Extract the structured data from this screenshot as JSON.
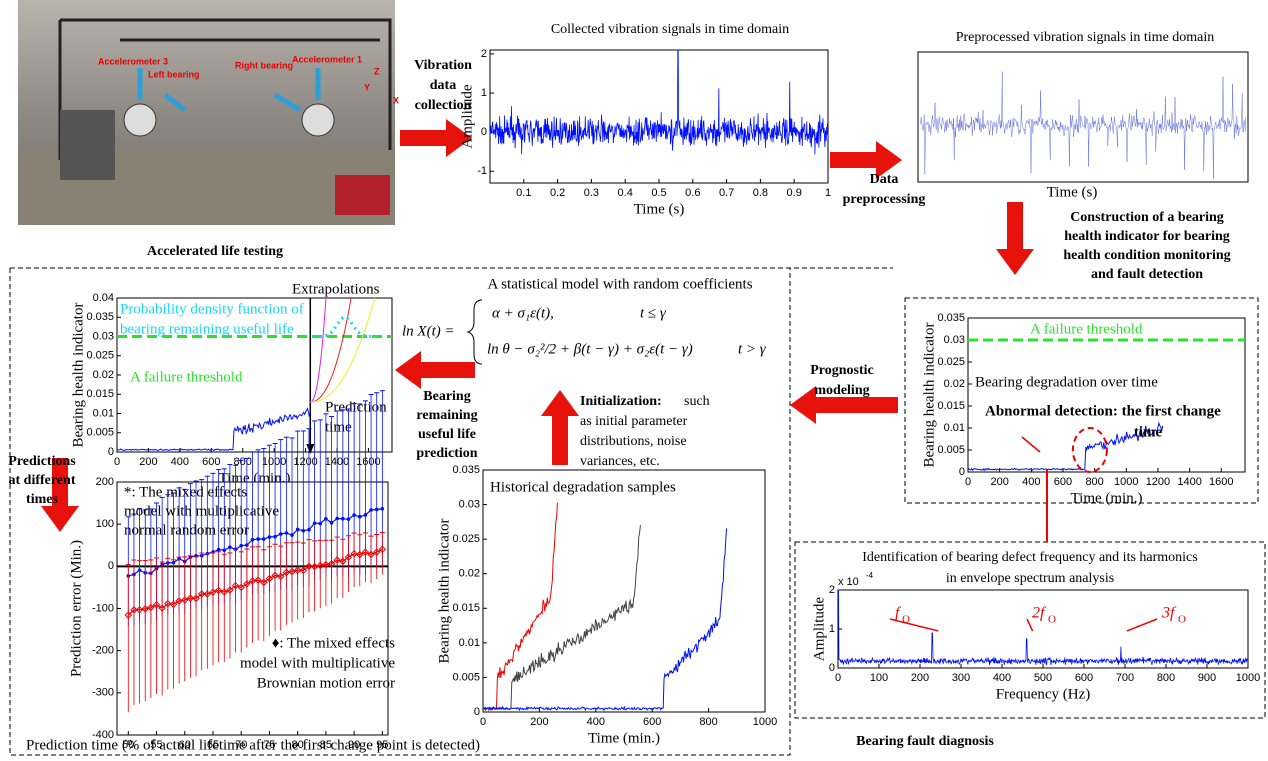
{
  "photo": {
    "labels": [
      "Accelerometer 3",
      "Left bearing",
      "Right bearing",
      "Accelerometer 1",
      "Z",
      "Y",
      "X"
    ],
    "caption": "Accelerated life testing"
  },
  "steps": {
    "collection": [
      "Vibration",
      "data",
      "collection"
    ],
    "preprocessing": [
      "Data",
      "preprocessing"
    ],
    "construction": [
      "Construction of a bearing",
      "health indicator for bearing",
      "health condition monitoring",
      "and fault detection"
    ],
    "prognostic": [
      "Prognostic",
      "modeling"
    ],
    "rul": [
      "Bearing",
      "remaining",
      "useful life",
      "prediction"
    ],
    "predictions": [
      "Predictions",
      "at different",
      "times"
    ],
    "initialization": {
      "bold": "Initialization:",
      "lines": [
        "such",
        "as initial parameter",
        "distributions, noise",
        "variances, etc."
      ]
    },
    "diagnosis": "Bearing fault diagnosis"
  },
  "charts": {
    "raw": {
      "title": "Collected vibration signals in time domain",
      "ylabel": "Amplitude",
      "xlabel": "Time (s)",
      "xlim": [
        0,
        1
      ],
      "xticks": [
        0.1,
        0.2,
        0.3,
        0.4,
        0.5,
        0.6,
        0.7,
        0.8,
        0.9,
        1
      ],
      "ylim": [
        -1.3,
        2.1
      ],
      "yticks": [
        -1,
        0,
        1,
        2
      ]
    },
    "preprocessed": {
      "title": "Preprocessed vibration signals in time domain",
      "xlabel": "Time (s)"
    },
    "health": {
      "ylabel": "Bearing health indicator",
      "xlabel": "Time (min.)",
      "xlim": [
        0,
        1750
      ],
      "xticks": [
        0,
        200,
        400,
        600,
        800,
        1000,
        1200,
        1400,
        1600
      ],
      "ylim": [
        0,
        0.035
      ],
      "yticks": [
        0,
        0.005,
        0.01,
        0.015,
        0.02,
        0.025,
        0.03,
        0.035
      ],
      "threshold": 0.03,
      "threshold_label": "A failure threshold",
      "notes": [
        "Bearing degradation over time",
        "Abnormal detection: the first change",
        "time"
      ]
    },
    "spectrum": {
      "title": [
        "Identification of bearing defect frequency and its harmonics",
        "in envelope spectrum analysis"
      ],
      "multiplier": "x 10",
      "exponent": "-4",
      "ylabel": "Amplitude",
      "xlabel": "Frequency (Hz)",
      "xlim": [
        0,
        1000
      ],
      "xticks": [
        0,
        100,
        200,
        300,
        400,
        500,
        600,
        700,
        800,
        900,
        1000
      ],
      "ylim": [
        0,
        2
      ],
      "yticks": [
        0,
        1,
        2
      ],
      "peak_labels": [
        "f",
        "2f",
        "3f"
      ],
      "peak_sub": "O"
    },
    "rul": {
      "ylabel": "Bearing health indicator",
      "xlabel": "Time (min.)",
      "xlim": [
        0,
        1750
      ],
      "xticks": [
        0,
        200,
        400,
        600,
        800,
        1000,
        1200,
        1400,
        1600
      ],
      "ylim": [
        0,
        0.04
      ],
      "yticks": [
        0,
        0.005,
        0.01,
        0.015,
        0.02,
        0.025,
        0.03,
        0.035,
        0.04
      ],
      "threshold": 0.03,
      "threshold_label": "A failure threshold",
      "extrapolations": "Extrapolations",
      "pdf_label": [
        "Probability density function of",
        "bearing remaining useful life"
      ],
      "prediction_time": [
        "Prediction",
        "time"
      ],
      "prediction_at": 1230
    },
    "model": {
      "title": "A statistical model with random coefficients",
      "lhs": "ln X(t) =",
      "case1": "α + σ₁ε(t),",
      "cond1": "t ≤ γ",
      "case2": "ln θ − σ₂²/2 + β(t − γ) + σ₂ε(t − γ)",
      "cond2": "t > γ"
    },
    "history": {
      "title": "Historical degradation samples",
      "ylabel": "Bearing health indicator",
      "xlabel": "Time (min.)",
      "xlim": [
        0,
        1000
      ],
      "xticks": [
        0,
        200,
        400,
        600,
        800,
        1000
      ],
      "ylim": [
        0,
        0.035
      ],
      "yticks": [
        0,
        0.005,
        0.01,
        0.015,
        0.02,
        0.025,
        0.03,
        0.035
      ]
    },
    "errors": {
      "ylabel": "Prediction error (Min.)",
      "xlabel": "Prediction time (% of actual lifetime after the first change point is detected)",
      "xlim": [
        48,
        96
      ],
      "xticks": [
        50,
        55,
        60,
        65,
        70,
        75,
        80,
        85,
        90,
        95
      ],
      "ylim": [
        -400,
        200
      ],
      "yticks": [
        -400,
        -300,
        -200,
        -100,
        0,
        100,
        200
      ],
      "star_note": [
        "*:  The  mixed  effects",
        "model with multiplicative",
        "normal random error"
      ],
      "diamond_note": [
        "♦: The mixed effects",
        "model with multiplicative",
        "Brownian motion error"
      ]
    }
  }
}
